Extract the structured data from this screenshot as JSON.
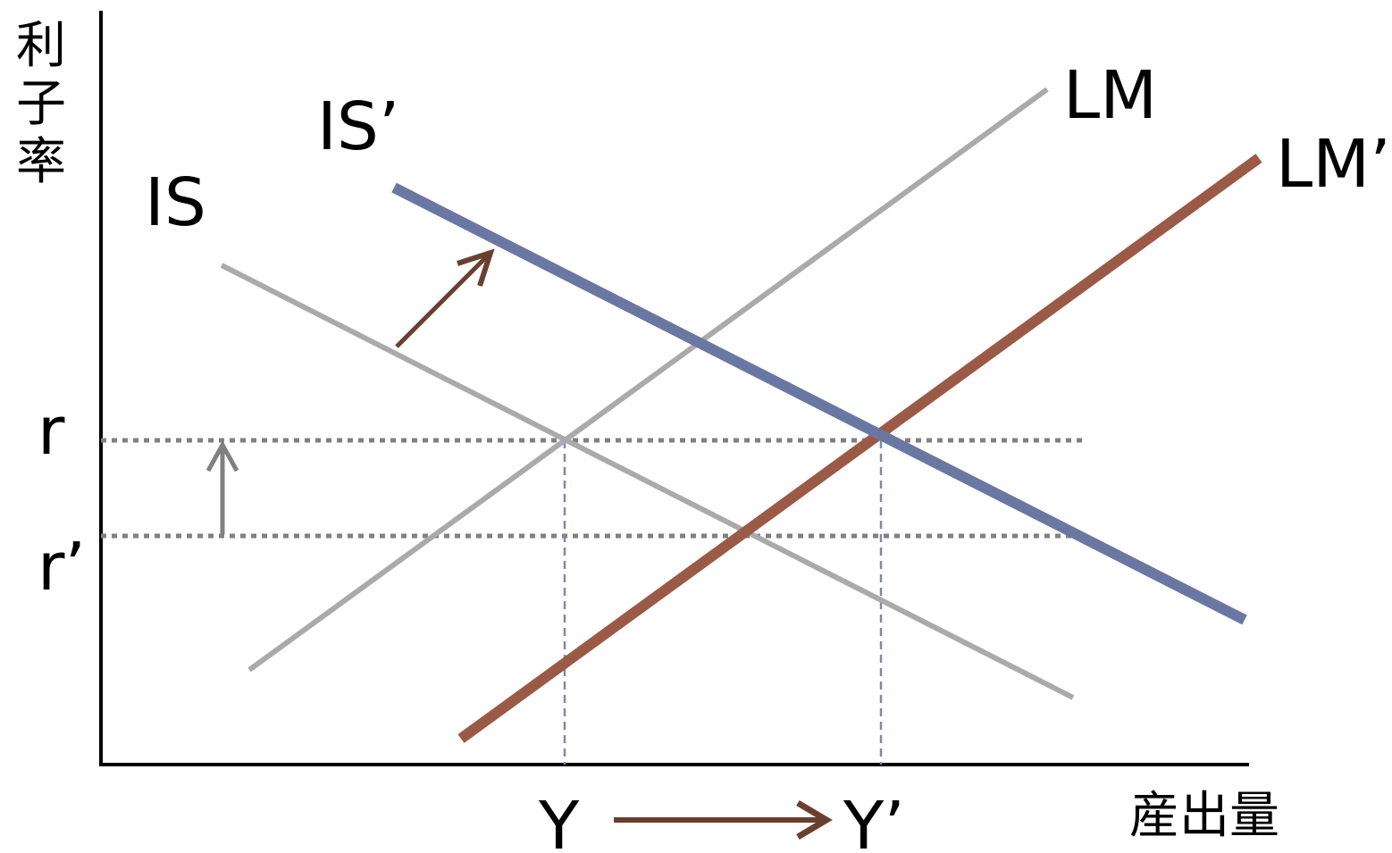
{
  "axes": {
    "y_label_chars": [
      "利",
      "子",
      "率"
    ],
    "x_label": "産出量"
  },
  "curves": {
    "is": {
      "label": "IS"
    },
    "is_prime": {
      "label": "IS’"
    },
    "lm": {
      "label": "LM"
    },
    "lm_prime": {
      "label": "LM’"
    }
  },
  "rates": {
    "r": "r",
    "r_prime": "r’"
  },
  "outputs": {
    "y": "Y",
    "y_prime": "Y’"
  },
  "colors": {
    "axis": "#000000",
    "original_curves": "#aaaaaa",
    "is_prime": "#6b77a3",
    "lm_prime": "#9b5a45",
    "shift_arrow": "#6b3f2e",
    "rate_arrow": "#808080",
    "rate_guides": "#808080",
    "output_guides": "#8088aa"
  }
}
